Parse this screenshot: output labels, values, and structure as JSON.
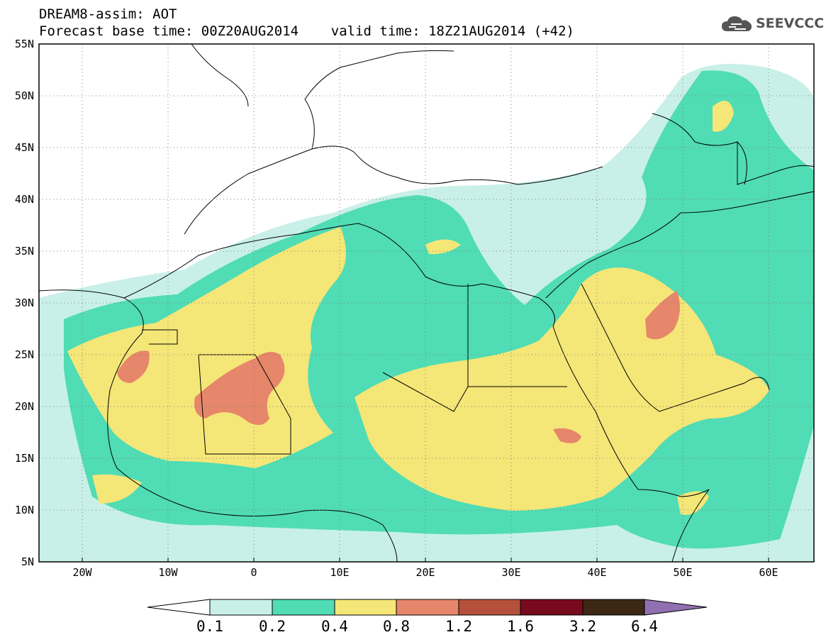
{
  "header": {
    "title_line1": "DREAM8-assim: AOT",
    "title_line2": "Forecast base time: 00Z20AUG2014    valid time: 18Z21AUG2014 (+42)"
  },
  "logo": {
    "icon": "cloud-icon",
    "text": "SEEVCCC",
    "color": "#555555"
  },
  "map": {
    "variable": "AOT",
    "lat_labels": [
      "55N",
      "50N",
      "45N",
      "40N",
      "35N",
      "30N",
      "25N",
      "20N",
      "15N",
      "10N",
      "5N"
    ],
    "lon_labels": [
      "20W",
      "10W",
      "0",
      "10E",
      "20E",
      "30E",
      "40E",
      "50E",
      "60E"
    ],
    "grid": "dotted",
    "ocean_color": "#ffffff",
    "land_outline_color": "#000000"
  },
  "legend": {
    "thresholds": [
      "0.1",
      "0.2",
      "0.4",
      "0.8",
      "1.2",
      "1.6",
      "3.2",
      "6.4"
    ],
    "colors": [
      "#ffffff",
      "#c8f0e8",
      "#50dcb4",
      "#f5e678",
      "#e6866a",
      "#b4503c",
      "#780a1e",
      "#3c2814",
      "#9070b0"
    ]
  }
}
